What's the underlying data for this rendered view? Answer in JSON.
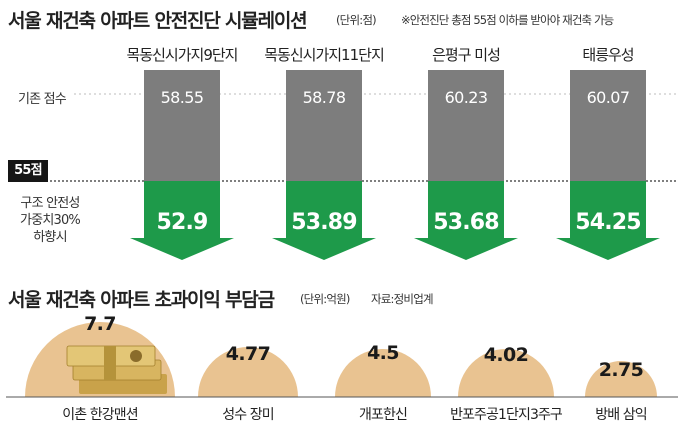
{
  "chart_data": [
    {
      "type": "bar",
      "title": "서울 재건축 아파트 안전진단 시뮬레이션",
      "unit": "(단위:점)",
      "note": "※안전진단 총점 55점 이하를 받아야 재건축 가능",
      "threshold_label": "55점",
      "threshold": 55,
      "categories": [
        "목동신시가지9단지",
        "목동신시가지11단지",
        "은평구 미성",
        "태릉우성"
      ],
      "series": [
        {
          "name": "기존 점수",
          "values": [
            "58.55",
            "58.78",
            "60.23",
            "60.07"
          ],
          "color": "#7d7d7d"
        },
        {
          "name": "구조 안전성 가중치30% 하향시",
          "values": [
            "52.9",
            "53.89",
            "53.68",
            "54.25"
          ],
          "color": "#1e9a4a"
        }
      ]
    },
    {
      "type": "bar",
      "title": "서울 재건축 아파트 초과이익 부담금",
      "unit": "(단위:억원)",
      "source": "자료:정비업계",
      "categories": [
        "이촌 한강맨션",
        "성수 장미",
        "개포한신",
        "반포주공1단지3주구",
        "방배 삼익"
      ],
      "values": [
        "7.7",
        "4.77",
        "4.5",
        "4.02",
        "2.75"
      ],
      "color": "#e9c391"
    }
  ],
  "labels": {
    "basic_score": "기존 점수",
    "badge": "55점",
    "adj_line1": "구조 안전성",
    "adj_line2": "가중치30%",
    "adj_line3": "하향시"
  }
}
